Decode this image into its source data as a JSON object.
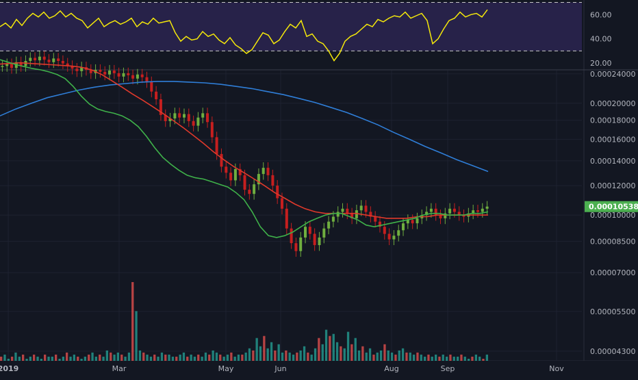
{
  "colors": {
    "background": "#131722",
    "grid": "#1e2230",
    "axis_text": "#b2b5be",
    "rsi_line": "#f5e90a",
    "rsi_band": "#2b2550",
    "up_candle": "#6fae3f",
    "down_candle": "#c61f1f",
    "ma_short": "#3fb24a",
    "ma_medium": "#e0392b",
    "ma_long": "#2f7ed8",
    "vol_up": "#26a69a",
    "vol_down": "#ef5350",
    "last_price_badge": "#4caf50"
  },
  "chart_data": [
    {
      "type": "line",
      "panel": "rsi",
      "y_ticks": [
        "60.00",
        "40.00",
        "20.00"
      ],
      "ylim": [
        15,
        72
      ],
      "band": [
        30,
        70
      ],
      "x": [
        0,
        8,
        16,
        24,
        32,
        40,
        48,
        56,
        64,
        72,
        80,
        88,
        96,
        104,
        112,
        120,
        128,
        136,
        144,
        152,
        160,
        168,
        176,
        184,
        192,
        200,
        208,
        216,
        224,
        232,
        240,
        248,
        256,
        264,
        272,
        280,
        288,
        296,
        304,
        312,
        320,
        328,
        336,
        344,
        352,
        360,
        368,
        376,
        384,
        392,
        400,
        408,
        416,
        424,
        432,
        440,
        448,
        456,
        464,
        472,
        480,
        488,
        496,
        504,
        512,
        520,
        528,
        536,
        544,
        552,
        560,
        568,
        576,
        584,
        592,
        600,
        608,
        616,
        624,
        632,
        640,
        648,
        656,
        664,
        672,
        680,
        688,
        696,
        704,
        712
      ],
      "y": [
        50,
        53,
        49,
        56,
        51,
        57,
        61,
        58,
        62,
        57,
        59,
        63,
        58,
        61,
        57,
        55,
        49,
        53,
        57,
        50,
        53,
        55,
        52,
        54,
        57,
        50,
        54,
        52,
        57,
        53,
        54,
        55,
        45,
        38,
        42,
        39,
        40,
        46,
        42,
        44,
        39,
        36,
        41,
        35,
        32,
        28,
        31,
        38,
        45,
        43,
        36,
        39,
        46,
        52,
        49,
        55,
        42,
        44,
        38,
        36,
        30,
        22,
        28,
        38,
        42,
        44,
        48,
        52,
        50,
        56,
        54,
        57,
        59,
        58,
        62,
        57,
        59,
        61,
        55,
        36,
        40,
        48,
        55,
        57,
        62,
        58,
        60,
        61,
        58,
        64
      ]
    },
    {
      "type": "candlestick",
      "panel": "price",
      "y_scale": "log",
      "y_ticks": [
        "0.00024000",
        "0.00020000",
        "0.00018000",
        "0.00016000",
        "0.00014000",
        "0.00012000",
        "0.00010000",
        "0.00008500",
        "0.00007000",
        "0.00005500",
        "0.00004300"
      ],
      "ylim": [
        4.05e-05,
        0.000245
      ],
      "last_price": "0.00010538",
      "x_labels": [
        "2019",
        "Mar",
        "May",
        "Jun",
        "Aug",
        "Sep",
        "Nov"
      ],
      "close": [
        0.000252,
        0.000255,
        0.000249,
        0.000258,
        0.000252,
        0.00026,
        0.000265,
        0.000261,
        0.000267,
        0.000262,
        0.000258,
        0.000264,
        0.00026,
        0.000256,
        0.000252,
        0.000248,
        0.000244,
        0.00025,
        0.000246,
        0.000241,
        0.000246,
        0.000243,
        0.000239,
        0.000245,
        0.000241,
        0.000236,
        0.000241,
        0.000238,
        0.000233,
        0.000239,
        0.000235,
        0.000228,
        0.000215,
        0.000205,
        0.000186,
        0.000179,
        0.000182,
        0.000188,
        0.000183,
        0.000187,
        0.000179,
        0.000174,
        0.000183,
        0.000188,
        0.000178,
        0.000162,
        0.000146,
        0.000135,
        0.00013,
        0.000124,
        0.000133,
        0.000128,
        0.000117,
        0.000114,
        0.000121,
        0.000129,
        0.000134,
        0.000128,
        0.00012,
        0.000111,
        0.000104,
        9.2e-05,
        8.4e-05,
        8e-05,
        8.7e-05,
        9.3e-05,
        8.9e-05,
        8.3e-05,
        8.7e-05,
        9.2e-05,
        9.6e-05,
        9.9e-05,
        0.000102,
        0.000104,
        0.000101,
        9.8e-05,
        0.000103,
        0.000106,
        0.000102,
        9.9e-05,
        9.6e-05,
        9.3e-05,
        8.9e-05,
        8.6e-05,
        8.8e-05,
        9.1e-05,
        9.5e-05,
        9.7e-05,
        9.5e-05,
        9.8e-05,
        0.0001,
        0.000102,
        0.000104,
        0.0001,
        9.8e-05,
        0.000101,
        0.000104,
        0.000102,
        0.0001,
        9.9e-05,
        0.000101,
        0.000103,
        0.000102,
        0.000104,
        0.00010538
      ],
      "series": [
        {
          "name": "",
          "color_key": "ma_short",
          "y": [
            0.000262,
            0.000258,
            0.000254,
            0.000251,
            0.000248,
            0.000246,
            0.000243,
            0.000239,
            0.000233,
            0.000222,
            0.000209,
            0.000199,
            0.000193,
            0.00019,
            0.000188,
            0.000185,
            0.00018,
            0.000173,
            0.000163,
            0.000152,
            0.000143,
            0.000137,
            0.000132,
            0.000128,
            0.000126,
            0.000125,
            0.000123,
            0.000121,
            0.000119,
            0.000115,
            0.00011,
            0.000102,
            9.3e-05,
            8.8e-05,
            8.7e-05,
            8.8e-05,
            9e-05,
            9.3e-05,
            9.6e-05,
            9.8e-05,
            0.0001,
            0.000101,
            0.000101,
            9.9e-05,
            9.7e-05,
            9.4e-05,
            9.3e-05,
            9.4e-05,
            9.5e-05,
            9.6e-05,
            9.7e-05,
            9.8e-05,
            0.0001,
            0.000101,
            0.000101,
            0.0001,
            0.0001,
            0.0001,
            0.000101,
            0.000101,
            0.000102
          ]
        },
        {
          "name": "",
          "color_key": "ma_medium",
          "y": [
            0.000255,
            0.000256,
            0.000257,
            0.000256,
            0.000255,
            0.000254,
            0.000253,
            0.000252,
            0.00025,
            0.000246,
            0.000239,
            0.00023,
            0.000221,
            0.000212,
            0.000204,
            0.000196,
            0.000188,
            0.00018,
            0.000172,
            0.000164,
            0.000156,
            0.000148,
            0.000141,
            0.000135,
            0.00013,
            0.000125,
            0.00012,
            0.000115,
            0.000111,
            0.000107,
            0.000104,
            0.000102,
            0.000101,
            0.000101,
            0.000101,
            0.000101,
            0.0001,
            9.9e-05,
            9.8e-05,
            9.8e-05,
            9.8e-05,
            9.9e-05,
            9.9e-05,
            0.0001,
            0.0001,
            0.0001,
            0.0001,
            0.0001,
            0.0001
          ]
        },
        {
          "name": "",
          "color_key": "ma_long",
          "y": [
            0.000185,
            0.000193,
            0.0002,
            0.000207,
            0.000212,
            0.000217,
            0.000221,
            0.000224,
            0.000226,
            0.000228,
            0.000229,
            0.000229,
            0.000228,
            0.000227,
            0.000225,
            0.000222,
            0.000219,
            0.000215,
            0.000211,
            0.000206,
            0.000201,
            0.000195,
            0.000189,
            0.000182,
            0.000175,
            0.000167,
            0.00016,
            0.000153,
            0.000147,
            0.000141,
            0.000136,
            0.000131
          ]
        }
      ]
    },
    {
      "type": "bar",
      "panel": "volume",
      "values": [
        2,
        3,
        1,
        2,
        4,
        2,
        3,
        1,
        2,
        3,
        2,
        1,
        3,
        2,
        2,
        3,
        1,
        2,
        4,
        2,
        3,
        2,
        1,
        2,
        3,
        4,
        2,
        3,
        2,
        5,
        4,
        3,
        4,
        3,
        2,
        4,
        38,
        24,
        5,
        4,
        3,
        2,
        3,
        2,
        4,
        3,
        3,
        2,
        2,
        3,
        4,
        2,
        3,
        2,
        3,
        2,
        4,
        3,
        5,
        4,
        3,
        2,
        3,
        4,
        2,
        3,
        3,
        4,
        6,
        5,
        11,
        7,
        12,
        6,
        9,
        5,
        8,
        4,
        5,
        4,
        3,
        4,
        5,
        7,
        4,
        3,
        6,
        11,
        8,
        15,
        12,
        13,
        9,
        7,
        6,
        14,
        8,
        11,
        5,
        7,
        4,
        6,
        3,
        4,
        5,
        8,
        5,
        4,
        3,
        5,
        6,
        4,
        4,
        3,
        4,
        3,
        2,
        3,
        2,
        3,
        2,
        3,
        2,
        3,
        2,
        2,
        3,
        2,
        1,
        2,
        3,
        2,
        1,
        3
      ]
    }
  ]
}
